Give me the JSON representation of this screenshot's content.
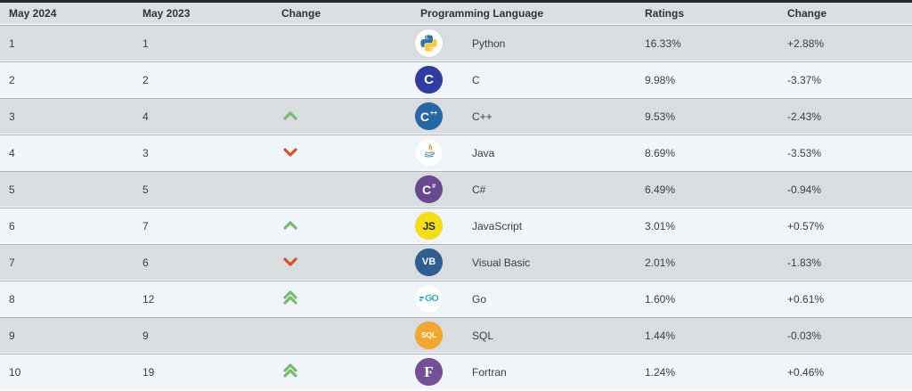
{
  "table": {
    "columns": [
      {
        "key": "rank_now",
        "label": "May 2024"
      },
      {
        "key": "rank_prev",
        "label": "May 2023"
      },
      {
        "key": "change",
        "label": "Change"
      },
      {
        "key": "language",
        "label": "Programming Language"
      },
      {
        "key": "ratings",
        "label": "Ratings"
      },
      {
        "key": "ratings_change",
        "label": "Change"
      }
    ],
    "rows": [
      {
        "rank_now": "1",
        "rank_prev": "1",
        "change": "none",
        "language": "Python",
        "ratings": "16.33%",
        "ratings_change": "+2.88%",
        "icon": {
          "name": "python-icon",
          "type": "python",
          "bg": "#ffffff"
        }
      },
      {
        "rank_now": "2",
        "rank_prev": "2",
        "change": "none",
        "language": "C",
        "ratings": "9.98%",
        "ratings_change": "-3.37%",
        "icon": {
          "name": "c-icon",
          "type": "text",
          "bg": "#2f3e9e",
          "fg": "#ffffff",
          "text": "C",
          "sup": "",
          "size": "15px"
        }
      },
      {
        "rank_now": "3",
        "rank_prev": "4",
        "change": "up",
        "language": "C++",
        "ratings": "9.53%",
        "ratings_change": "-2.43%",
        "icon": {
          "name": "cpp-icon",
          "type": "text",
          "bg": "#2767a6",
          "fg": "#ffffff",
          "text": "C",
          "sup": "++",
          "size": "14px"
        }
      },
      {
        "rank_now": "4",
        "rank_prev": "3",
        "change": "down",
        "language": "Java",
        "ratings": "8.69%",
        "ratings_change": "-3.53%",
        "icon": {
          "name": "java-icon",
          "type": "java",
          "bg": "#ffffff"
        }
      },
      {
        "rank_now": "5",
        "rank_prev": "5",
        "change": "none",
        "language": "C#",
        "ratings": "6.49%",
        "ratings_change": "-0.94%",
        "icon": {
          "name": "csharp-icon",
          "type": "text",
          "bg": "#68498e",
          "fg": "#ffffff",
          "text": "C",
          "sup": "#",
          "size": "14px"
        }
      },
      {
        "rank_now": "6",
        "rank_prev": "7",
        "change": "up",
        "language": "JavaScript",
        "ratings": "3.01%",
        "ratings_change": "+0.57%",
        "icon": {
          "name": "javascript-icon",
          "type": "text",
          "bg": "#f5de19",
          "fg": "#26292c",
          "text": "JS",
          "sup": "",
          "size": "12px",
          "cls": "f-js"
        }
      },
      {
        "rank_now": "7",
        "rank_prev": "6",
        "change": "down",
        "language": "Visual Basic",
        "ratings": "2.01%",
        "ratings_change": "-1.83%",
        "icon": {
          "name": "visual-basic-icon",
          "type": "text",
          "bg": "#2e5e92",
          "fg": "#ffffff",
          "text": "VB",
          "sup": "",
          "size": "11px"
        }
      },
      {
        "rank_now": "8",
        "rank_prev": "12",
        "change": "up2",
        "language": "Go",
        "ratings": "1.60%",
        "ratings_change": "+0.61%",
        "icon": {
          "name": "go-icon",
          "type": "go",
          "bg": "#ffffff",
          "fg": "#39a7c6",
          "text": "GO"
        }
      },
      {
        "rank_now": "9",
        "rank_prev": "9",
        "change": "none",
        "language": "SQL",
        "ratings": "1.44%",
        "ratings_change": "-0.03%",
        "icon": {
          "name": "sql-icon",
          "type": "text",
          "bg": "#f2a72e",
          "fg": "#ffffff",
          "text": "SQL",
          "sup": "",
          "cls": "f-small"
        }
      },
      {
        "rank_now": "10",
        "rank_prev": "19",
        "change": "up2",
        "language": "Fortran",
        "ratings": "1.24%",
        "ratings_change": "+0.46%",
        "icon": {
          "name": "fortran-icon",
          "type": "text",
          "bg": "#734f96",
          "fg": "#ffffff",
          "text": "F",
          "sup": "",
          "cls": "f-serif"
        }
      }
    ]
  },
  "colors": {
    "up_arrow": "#7cbb6e",
    "down_arrow": "#d8512e",
    "top_border": "#1f2732",
    "header_bg": "#dcdfe2",
    "row_gray_bg": "#d9dde0",
    "row_light_bg": "#f0f5f9",
    "python_blue": "#3671a1",
    "python_yellow": "#ffc836",
    "java_orange": "#e76f00",
    "java_blue": "#5382a1"
  }
}
